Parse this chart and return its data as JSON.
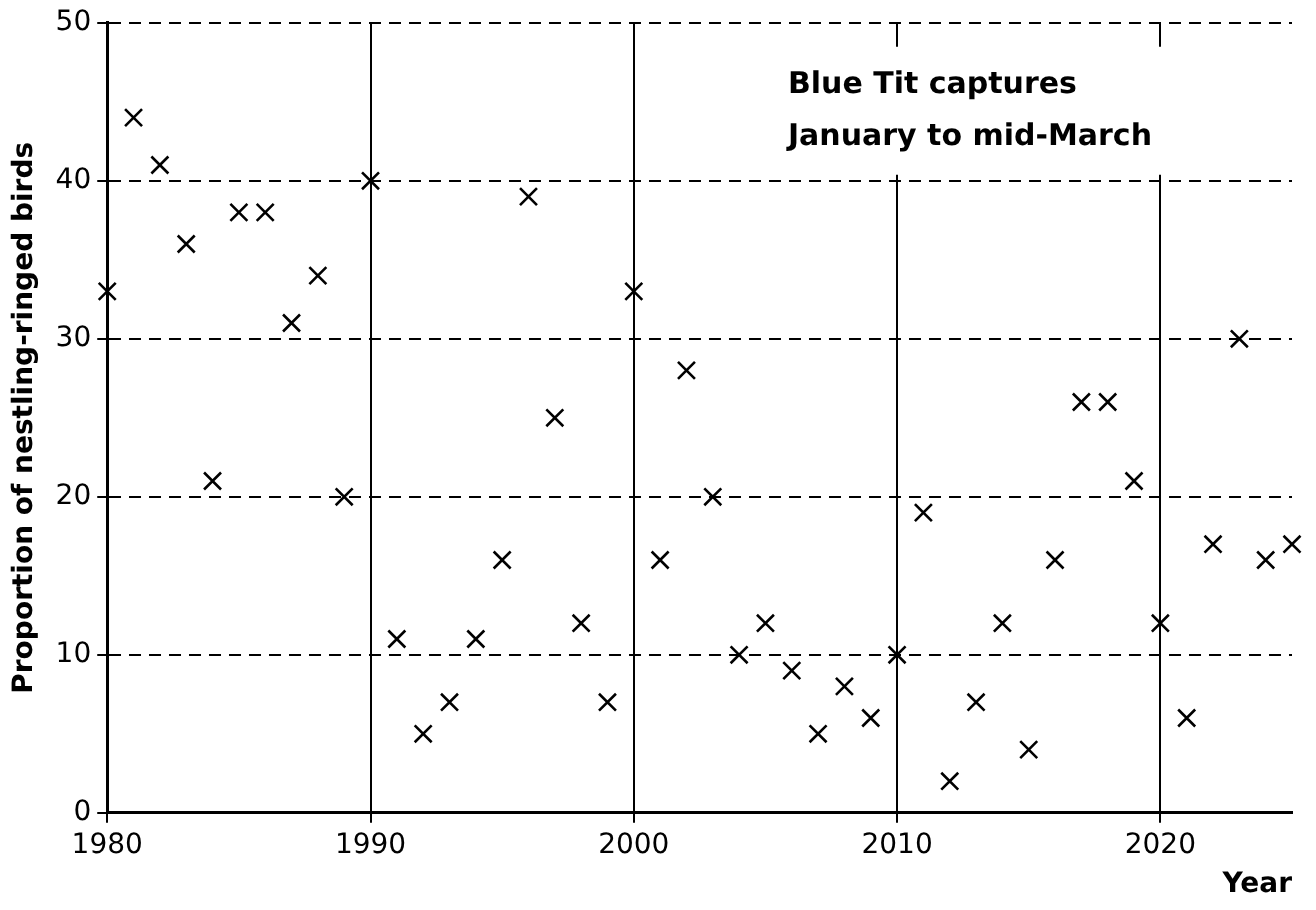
{
  "chart_data": {
    "type": "scatter",
    "xlabel": "Year",
    "ylabel": "Proportion of nestling-ringed birds",
    "annotations": [
      "Blue Tit captures\nJanuary to mid-March"
    ],
    "x": [
      1980,
      1981,
      1982,
      1983,
      1984,
      1985,
      1986,
      1987,
      1988,
      1989,
      1990,
      1991,
      1992,
      1993,
      1994,
      1995,
      1996,
      1997,
      1998,
      1999,
      2000,
      2001,
      2002,
      2003,
      2004,
      2005,
      2006,
      2007,
      2008,
      2009,
      2010,
      2011,
      2012,
      2013,
      2014,
      2015,
      2016,
      2017,
      2018,
      2019,
      2020,
      2021,
      2022,
      2023,
      2024,
      2025
    ],
    "series": [
      {
        "color": "#000000",
        "values": [
          33,
          44,
          41,
          36,
          21,
          38,
          38,
          31,
          34,
          20,
          40,
          11,
          5,
          7,
          11,
          16,
          39,
          25,
          12,
          7,
          33,
          16,
          28,
          20,
          10,
          12,
          9,
          5,
          8,
          6,
          10,
          19,
          2,
          7,
          12,
          4,
          16,
          26,
          26,
          21,
          12,
          6,
          17,
          30,
          16,
          17
        ]
      }
    ],
    "xlim": [
      1980,
      2025
    ],
    "xticks": [
      1980,
      1990,
      2000,
      2010,
      2020
    ],
    "ylim": [
      0,
      50
    ],
    "yticks": [
      0,
      10,
      20,
      30,
      40,
      50
    ],
    "grid": true,
    "marker": "cross",
    "legend": false
  }
}
